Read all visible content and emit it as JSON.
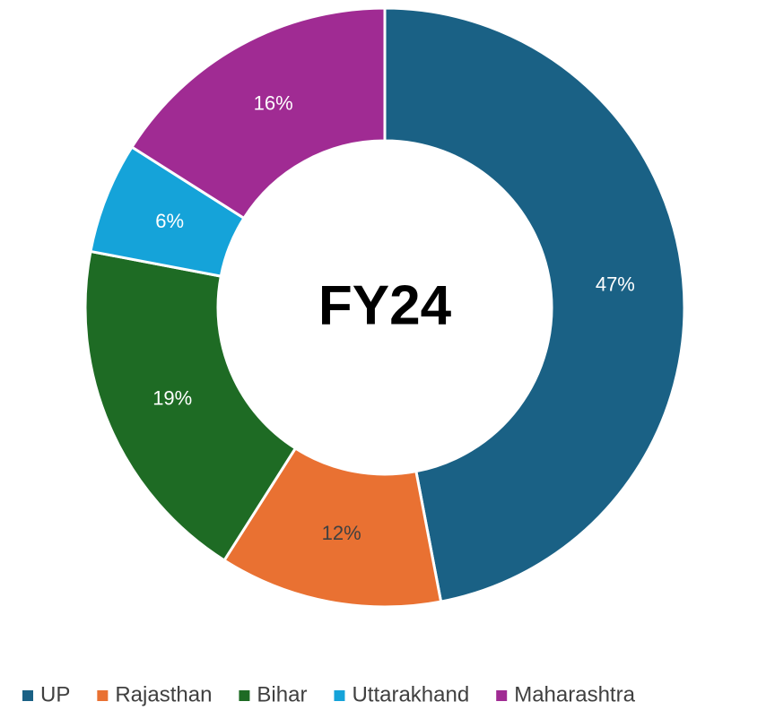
{
  "chart_data": {
    "type": "donut",
    "center_label": "FY24",
    "categories": [
      "UP",
      "Rajasthan",
      "Bihar",
      "Uttarakhand",
      "Maharashtra"
    ],
    "values": [
      47,
      12,
      19,
      6,
      16
    ],
    "value_labels": [
      "47%",
      "12%",
      "19%",
      "6%",
      "16%"
    ],
    "colors": [
      "#1a6185",
      "#e97132",
      "#1e6b24",
      "#15a3d9",
      "#a02b93"
    ],
    "legend": "bottom"
  }
}
